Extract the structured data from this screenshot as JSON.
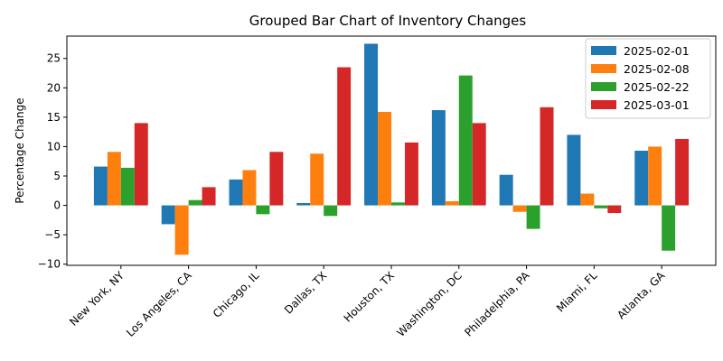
{
  "chart_data": {
    "type": "bar",
    "title": "Grouped Bar Chart of Inventory Changes",
    "xlabel": "",
    "ylabel": "Percentage Change",
    "ylim": [
      -10.2,
      28.8
    ],
    "yticks": [
      -10,
      -5,
      0,
      5,
      10,
      15,
      20,
      25
    ],
    "grid": false,
    "legend_position": "top-right",
    "categories": [
      "New York, NY",
      "Los Angeles, CA",
      "Chicago, IL",
      "Dallas, TX",
      "Houston, TX",
      "Washington, DC",
      "Philadelphia, PA",
      "Miami, FL",
      "Atlanta, GA"
    ],
    "series": [
      {
        "name": "2025-02-01",
        "color": "#1f77b4",
        "values": [
          6.6,
          -3.2,
          4.4,
          0.4,
          27.5,
          16.2,
          5.2,
          12.0,
          9.3
        ]
      },
      {
        "name": "2025-02-08",
        "color": "#ff7f0e",
        "values": [
          9.1,
          -8.4,
          6.0,
          8.8,
          15.9,
          0.7,
          -1.1,
          2.0,
          10.0
        ]
      },
      {
        "name": "2025-02-22",
        "color": "#2ca02c",
        "values": [
          6.4,
          0.9,
          -1.5,
          -1.8,
          0.5,
          22.1,
          -4.0,
          -0.5,
          -7.7
        ]
      },
      {
        "name": "2025-03-01",
        "color": "#d62728",
        "values": [
          14.0,
          3.1,
          9.1,
          23.5,
          10.7,
          14.0,
          16.7,
          -1.3,
          11.3
        ]
      }
    ]
  }
}
